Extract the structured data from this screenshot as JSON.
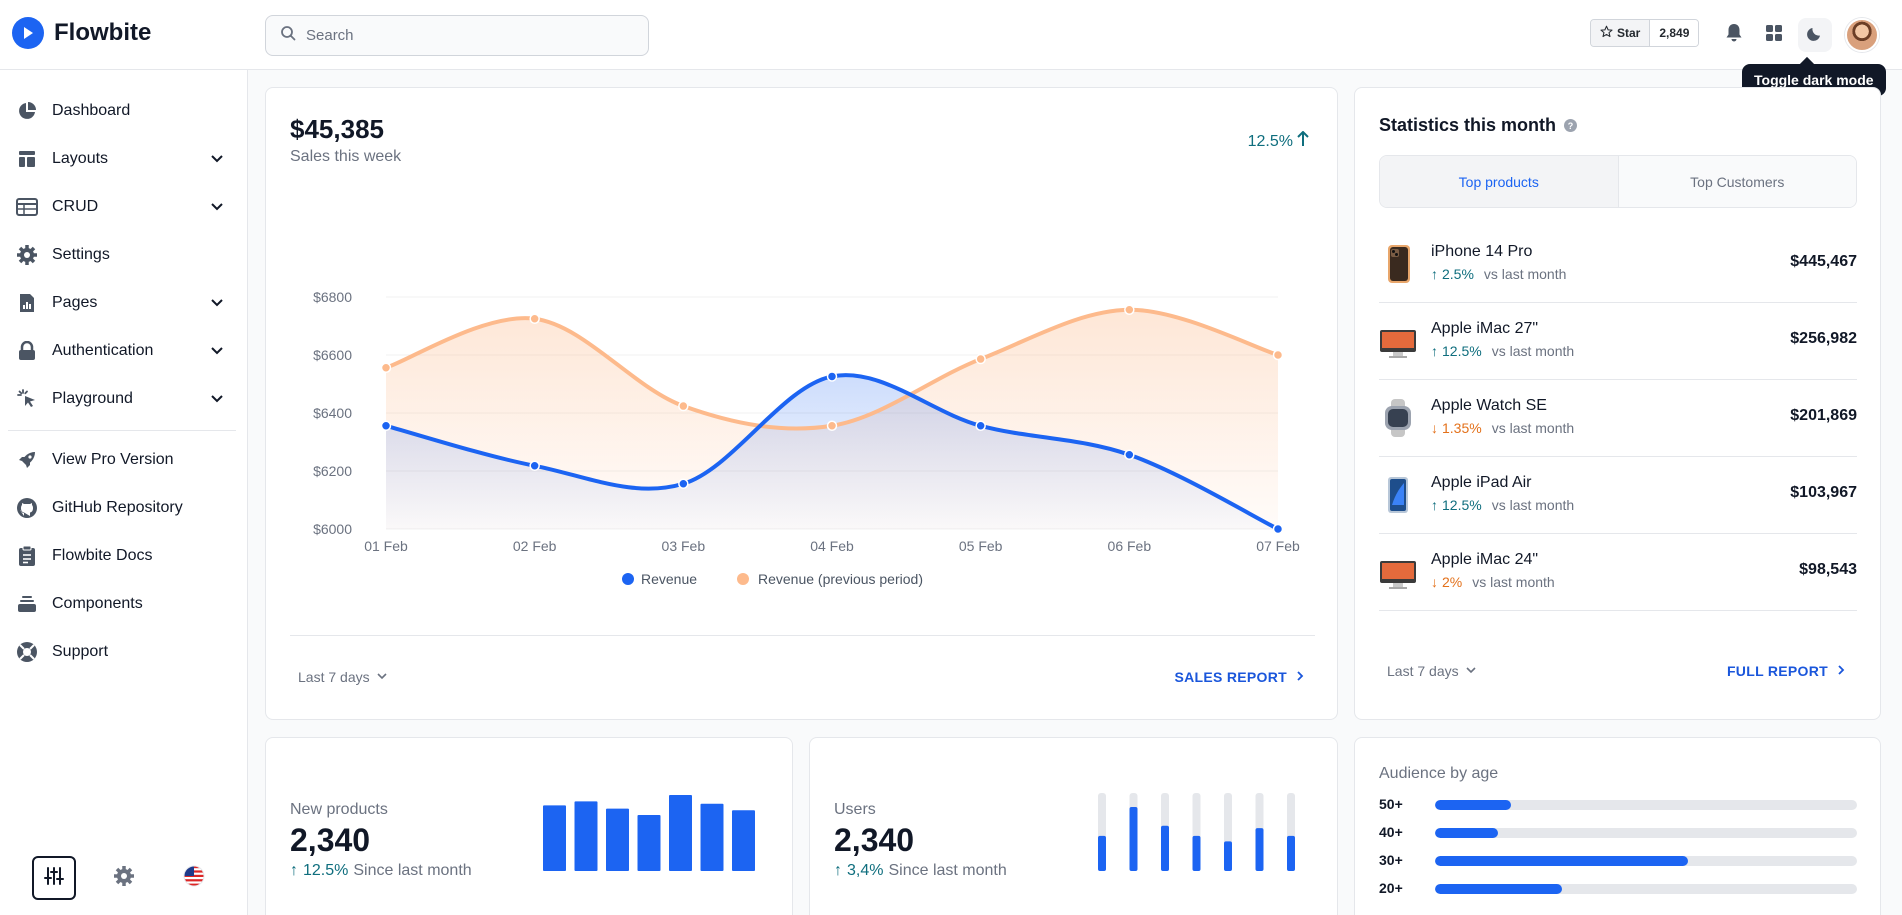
{
  "brand": {
    "name": "Flowbite"
  },
  "search": {
    "placeholder": "Search"
  },
  "github": {
    "star_label": "Star",
    "star_count": "2,849"
  },
  "tooltip": {
    "text": "Toggle dark mode"
  },
  "sidebar": {
    "items": [
      {
        "label": "Dashboard",
        "icon": "pie-chart-icon",
        "has_submenu": false
      },
      {
        "label": "Layouts",
        "icon": "layout-icon",
        "has_submenu": true
      },
      {
        "label": "CRUD",
        "icon": "table-icon",
        "has_submenu": true
      },
      {
        "label": "Settings",
        "icon": "gear-icon",
        "has_submenu": false
      },
      {
        "label": "Pages",
        "icon": "document-chart-icon",
        "has_submenu": true
      },
      {
        "label": "Authentication",
        "icon": "lock-icon",
        "has_submenu": true
      },
      {
        "label": "Playground",
        "icon": "cursor-click-icon",
        "has_submenu": true
      }
    ],
    "secondary": [
      {
        "label": "View Pro Version",
        "icon": "rocket-icon"
      },
      {
        "label": "GitHub Repository",
        "icon": "github-icon"
      },
      {
        "label": "Flowbite Docs",
        "icon": "clipboard-icon"
      },
      {
        "label": "Components",
        "icon": "collection-icon"
      },
      {
        "label": "Support",
        "icon": "lifebuoy-icon"
      }
    ]
  },
  "sales": {
    "total": "$45,385",
    "subtitle": "Sales this week",
    "change": "12.5%",
    "period": "Last 7 days",
    "report_link": "SALES REPORT"
  },
  "chart_data": {
    "type": "area",
    "categories": [
      "01 Feb",
      "02 Feb",
      "03 Feb",
      "04 Feb",
      "05 Feb",
      "06 Feb",
      "07 Feb"
    ],
    "y_ticks": [
      "$6800",
      "$6600",
      "$6400",
      "$6200",
      "$6000"
    ],
    "ylim": [
      6000,
      6800
    ],
    "series": [
      {
        "name": "Revenue",
        "color": "#1c64f2",
        "values": [
          6356,
          6218,
          6156,
          6526,
          6356,
          6256,
          6000
        ]
      },
      {
        "name": "Revenue (previous period)",
        "color": "#fdba8c",
        "values": [
          6556,
          6725,
          6424,
          6356,
          6586,
          6756,
          6600
        ]
      }
    ],
    "legend": [
      "Revenue",
      "Revenue (previous period)"
    ],
    "legend_position": "bottom",
    "grid": true
  },
  "stats": {
    "title": "Statistics this month",
    "tabs": [
      "Top products",
      "Top Customers"
    ],
    "active_tab": 0,
    "products": [
      {
        "name": "iPhone 14 Pro",
        "change": "2.5%",
        "direction": "up",
        "vs": "vs last month",
        "value": "$445,467"
      },
      {
        "name": "Apple iMac 27\"",
        "change": "12.5%",
        "direction": "up",
        "vs": "vs last month",
        "value": "$256,982"
      },
      {
        "name": "Apple Watch SE",
        "change": "1.35%",
        "direction": "down",
        "vs": "vs last month",
        "value": "$201,869"
      },
      {
        "name": "Apple iPad Air",
        "change": "12.5%",
        "direction": "up",
        "vs": "vs last month",
        "value": "$103,967"
      },
      {
        "name": "Apple iMac 24\"",
        "change": "2%",
        "direction": "down",
        "vs": "vs last month",
        "value": "$98,543"
      }
    ],
    "period": "Last 7 days",
    "report_link": "FULL REPORT"
  },
  "new_products": {
    "label": "New products",
    "value": "2,340",
    "change": "12.5%",
    "since": "Since last month",
    "bars": [
      0.82,
      0.87,
      0.78,
      0.7,
      0.95,
      0.84,
      0.76
    ]
  },
  "users": {
    "label": "Users",
    "value": "2,340",
    "change": "3,4%",
    "since": "Since last month",
    "bars": [
      0.45,
      0.82,
      0.58,
      0.45,
      0.38,
      0.55,
      0.45
    ]
  },
  "audience": {
    "title": "Audience by age",
    "rows": [
      {
        "label": "50+",
        "value": 0.18
      },
      {
        "label": "40+",
        "value": 0.15
      },
      {
        "label": "30+",
        "value": 0.6
      },
      {
        "label": "20+",
        "value": 0.3
      }
    ]
  },
  "colors": {
    "accent": "#1c64f2",
    "orange": "#fdba8c",
    "up": "#0f6e7e",
    "down": "#e3711b"
  }
}
